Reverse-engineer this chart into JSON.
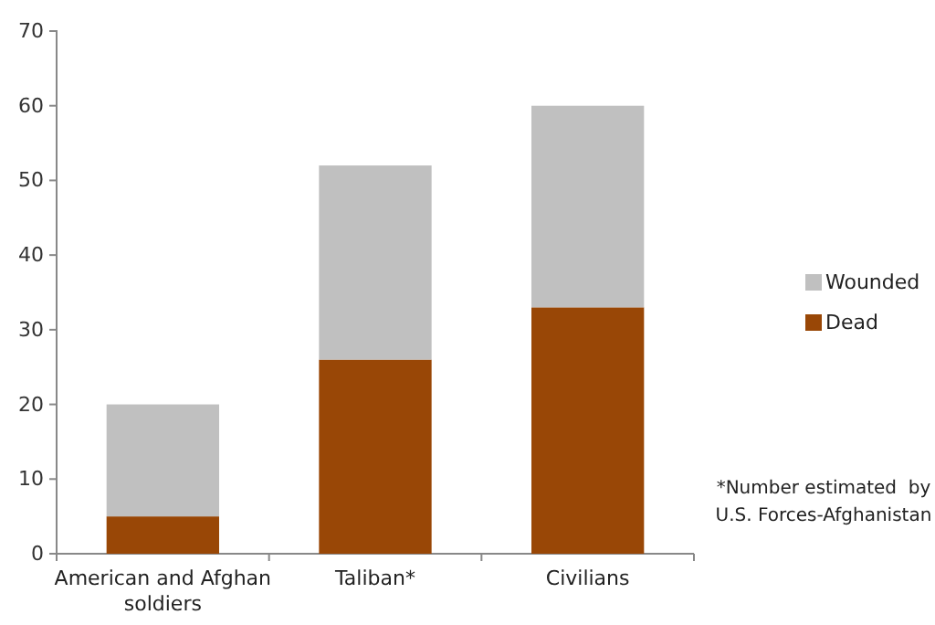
{
  "chart_data": {
    "type": "bar",
    "stacked": true,
    "categories": [
      "American and Afghan soldiers",
      "Taliban*",
      "Civilians"
    ],
    "series": [
      {
        "name": "Dead",
        "color": "#994706",
        "values": [
          5,
          26,
          33
        ]
      },
      {
        "name": "Wounded",
        "color": "#c0c0c0",
        "values": [
          15,
          26,
          27
        ]
      }
    ],
    "ylim": [
      0,
      70
    ],
    "yticks": [
      0,
      10,
      20,
      30,
      40,
      50,
      60,
      70
    ],
    "grid": false,
    "legend": "right",
    "annotations": [
      "*Number estimated  by U.S. Forces-Afghanistan"
    ]
  }
}
